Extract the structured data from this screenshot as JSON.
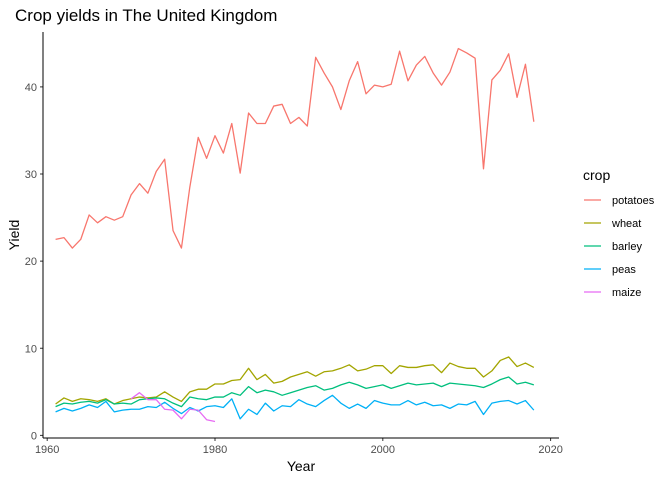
{
  "chart_data": {
    "type": "line",
    "title": "Crop yields in The United Kingdom",
    "xlabel": "Year",
    "ylabel": "Yield",
    "xlim": [
      1959.5,
      2021
    ],
    "ylim": [
      -0.3,
      46.3
    ],
    "x_ticks": [
      1960,
      1980,
      2000,
      2020
    ],
    "y_ticks": [
      0,
      10,
      20,
      30,
      40
    ],
    "grid": false,
    "legend_title": "crop",
    "legend_position": "right",
    "series": [
      {
        "name": "potatoes",
        "color": "#F8766D",
        "x": [
          1961,
          1962,
          1963,
          1964,
          1965,
          1966,
          1967,
          1968,
          1969,
          1970,
          1971,
          1972,
          1973,
          1974,
          1975,
          1976,
          1977,
          1978,
          1979,
          1980,
          1981,
          1982,
          1983,
          1984,
          1985,
          1986,
          1987,
          1988,
          1989,
          1990,
          1991,
          1992,
          1993,
          1994,
          1995,
          1996,
          1997,
          1998,
          1999,
          2000,
          2001,
          2002,
          2003,
          2004,
          2005,
          2006,
          2007,
          2008,
          2009,
          2010,
          2011,
          2012,
          2013,
          2014,
          2015,
          2016,
          2017,
          2018
        ],
        "y": [
          22.5,
          22.7,
          21.5,
          22.5,
          25.3,
          24.4,
          25.1,
          24.7,
          25.1,
          27.6,
          28.9,
          27.8,
          30.3,
          31.7,
          23.5,
          21.5,
          28.5,
          34.2,
          31.8,
          34.4,
          32.4,
          35.8,
          30.1,
          37.0,
          35.8,
          35.8,
          37.8,
          38.0,
          35.8,
          36.5,
          35.5,
          43.4,
          41.6,
          40.0,
          37.4,
          40.7,
          42.9,
          39.2,
          40.2,
          40.0,
          40.3,
          44.1,
          40.7,
          42.5,
          43.5,
          41.6,
          40.2,
          41.7,
          44.4,
          43.9,
          43.3,
          30.6,
          40.8,
          41.9,
          43.8,
          38.8,
          42.6,
          36.0
        ]
      },
      {
        "name": "wheat",
        "color": "#A3A500",
        "x": [
          1961,
          1962,
          1963,
          1964,
          1965,
          1966,
          1967,
          1968,
          1969,
          1970,
          1971,
          1972,
          1973,
          1974,
          1975,
          1976,
          1977,
          1978,
          1979,
          1980,
          1981,
          1982,
          1983,
          1984,
          1985,
          1986,
          1987,
          1988,
          1989,
          1990,
          1991,
          1992,
          1993,
          1994,
          1995,
          1996,
          1997,
          1998,
          1999,
          2000,
          2001,
          2002,
          2003,
          2004,
          2005,
          2006,
          2007,
          2008,
          2009,
          2010,
          2011,
          2012,
          2013,
          2014,
          2015,
          2016,
          2017,
          2018
        ],
        "y": [
          3.6,
          4.3,
          3.9,
          4.2,
          4.1,
          3.9,
          4.2,
          3.6,
          4.0,
          4.2,
          4.4,
          4.3,
          4.4,
          5.0,
          4.4,
          3.9,
          5.0,
          5.3,
          5.3,
          5.9,
          5.9,
          6.3,
          6.4,
          7.7,
          6.4,
          7.0,
          6.0,
          6.2,
          6.7,
          7.0,
          7.3,
          6.8,
          7.3,
          7.4,
          7.7,
          8.1,
          7.4,
          7.6,
          8.0,
          8.0,
          7.1,
          8.0,
          7.8,
          7.8,
          8.0,
          8.1,
          7.2,
          8.3,
          7.9,
          7.7,
          7.7,
          6.7,
          7.4,
          8.6,
          9.0,
          7.9,
          8.3,
          7.8
        ]
      },
      {
        "name": "barley",
        "color": "#00BF7D",
        "x": [
          1961,
          1962,
          1963,
          1964,
          1965,
          1966,
          1967,
          1968,
          1969,
          1970,
          1971,
          1972,
          1973,
          1974,
          1975,
          1976,
          1977,
          1978,
          1979,
          1980,
          1981,
          1982,
          1983,
          1984,
          1985,
          1986,
          1987,
          1988,
          1989,
          1990,
          1991,
          1992,
          1993,
          1994,
          1995,
          1996,
          1997,
          1998,
          1999,
          2000,
          2001,
          2002,
          2003,
          2004,
          2005,
          2006,
          2007,
          2008,
          2009,
          2010,
          2011,
          2012,
          2013,
          2014,
          2015,
          2016,
          2017,
          2018
        ],
        "y": [
          3.3,
          3.7,
          3.6,
          3.8,
          3.9,
          3.7,
          4.1,
          3.6,
          3.7,
          3.6,
          4.1,
          4.2,
          4.3,
          4.2,
          3.7,
          3.3,
          4.4,
          4.2,
          4.1,
          4.4,
          4.4,
          4.9,
          4.6,
          5.6,
          4.9,
          5.2,
          5.0,
          4.6,
          4.9,
          5.2,
          5.5,
          5.7,
          5.2,
          5.4,
          5.8,
          6.1,
          5.8,
          5.4,
          5.6,
          5.8,
          5.4,
          5.7,
          6.0,
          5.8,
          5.9,
          6.0,
          5.6,
          6.0,
          5.9,
          5.8,
          5.7,
          5.5,
          5.9,
          6.4,
          6.7,
          5.9,
          6.1,
          5.8
        ]
      },
      {
        "name": "peas",
        "color": "#00B0F6",
        "x": [
          1961,
          1962,
          1963,
          1964,
          1965,
          1966,
          1967,
          1968,
          1969,
          1970,
          1971,
          1972,
          1973,
          1974,
          1975,
          1976,
          1977,
          1978,
          1979,
          1980,
          1981,
          1982,
          1983,
          1984,
          1985,
          1986,
          1987,
          1988,
          1989,
          1990,
          1991,
          1992,
          1993,
          1994,
          1995,
          1996,
          1997,
          1998,
          1999,
          2000,
          2001,
          2002,
          2003,
          2004,
          2005,
          2006,
          2007,
          2008,
          2009,
          2010,
          2011,
          2012,
          2013,
          2014,
          2015,
          2016,
          2017,
          2018
        ],
        "y": [
          2.7,
          3.1,
          2.8,
          3.1,
          3.5,
          3.2,
          3.9,
          2.7,
          2.9,
          3.0,
          3.0,
          3.3,
          3.2,
          3.8,
          3.1,
          2.5,
          3.2,
          2.8,
          3.3,
          3.4,
          3.2,
          4.2,
          1.9,
          3.0,
          2.4,
          3.7,
          2.8,
          3.4,
          3.3,
          4.1,
          3.6,
          3.3,
          4.0,
          4.6,
          3.7,
          3.1,
          3.6,
          3.1,
          4.0,
          3.7,
          3.5,
          3.5,
          4.0,
          3.5,
          3.8,
          3.4,
          3.5,
          3.1,
          3.6,
          3.5,
          3.9,
          2.4,
          3.7,
          3.9,
          4.0,
          3.6,
          4.0,
          2.9
        ]
      },
      {
        "name": "maize",
        "color": "#E76BF3",
        "x": [
          1970,
          1971,
          1972,
          1973,
          1974,
          1975,
          1976,
          1977,
          1978,
          1979,
          1980
        ],
        "y": [
          4.2,
          4.9,
          4.1,
          4.1,
          3.0,
          2.9,
          1.9,
          3.0,
          2.9,
          1.8,
          1.6
        ]
      }
    ]
  }
}
